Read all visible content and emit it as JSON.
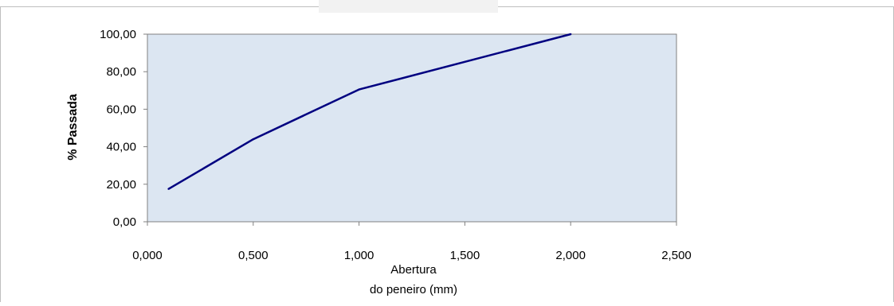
{
  "chart_data": {
    "type": "line",
    "title": "",
    "xlabel_lines": [
      "Abertura",
      "do peneiro (mm)"
    ],
    "ylabel": "% Passada",
    "xlim": [
      0,
      2.5
    ],
    "ylim": [
      0,
      100
    ],
    "x_ticks": [
      0,
      0.5,
      1.0,
      1.5,
      2.0,
      2.5
    ],
    "x_tick_labels": [
      "0,000",
      "0,500",
      "1,000",
      "1,500",
      "2,000",
      "2,500"
    ],
    "y_ticks": [
      0,
      20,
      40,
      60,
      80,
      100
    ],
    "y_tick_labels": [
      "0,00",
      "20,00",
      "40,00",
      "60,00",
      "80,00",
      "100,00"
    ],
    "grid": false,
    "legend": "none",
    "plot_background": "#dce6f2",
    "series": [
      {
        "color": "#000080",
        "x": [
          0.1,
          0.5,
          1.0,
          2.0
        ],
        "y": [
          17.5,
          44,
          70.5,
          100
        ]
      }
    ]
  }
}
